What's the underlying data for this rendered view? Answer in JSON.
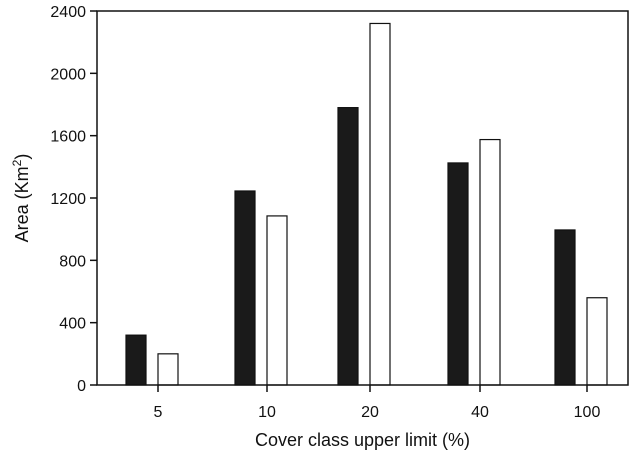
{
  "chart_data": {
    "type": "bar",
    "title": "",
    "xlabel": "Cover class upper limit (%)",
    "ylabel_main": "Area (Km",
    "ylabel_sup": "2",
    "ylabel_close": ")",
    "ylim": [
      0,
      2400
    ],
    "yticks": [
      0,
      400,
      800,
      1200,
      1600,
      2000,
      2400
    ],
    "ytick_labels": [
      "0",
      "400",
      "800",
      "1200",
      "1600",
      "2000",
      "2400"
    ],
    "categories": [
      "5",
      "10",
      "20",
      "40",
      "100"
    ],
    "grid": false,
    "legend": "none",
    "series": [
      {
        "color": "#1a1a1a",
        "values": [
          320,
          1245,
          1780,
          1425,
          995
        ]
      },
      {
        "color": "#ffffff",
        "values": [
          200,
          1085,
          2320,
          1575,
          560
        ]
      }
    ]
  }
}
